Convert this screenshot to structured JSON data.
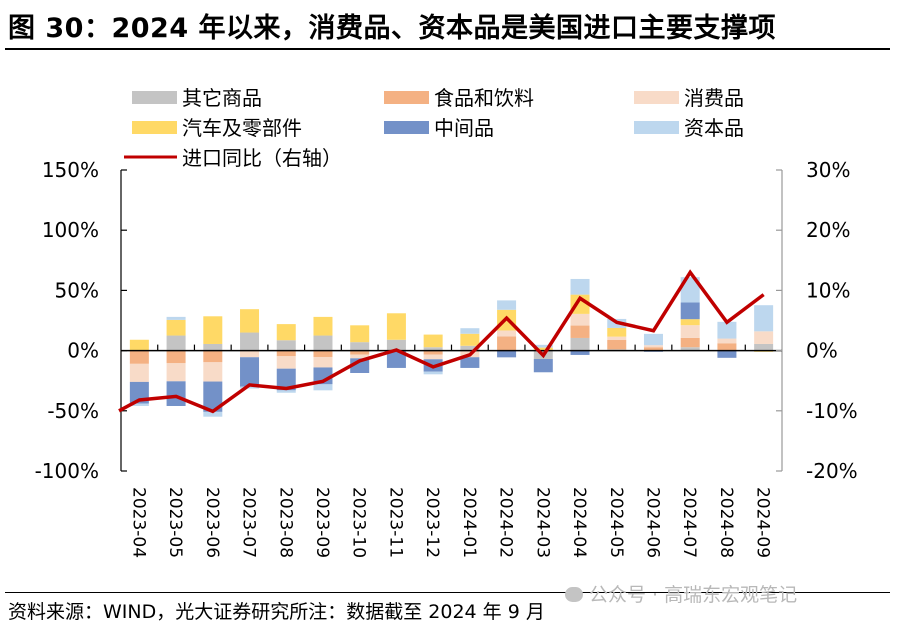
{
  "title": "图 30：2024 年以来，消费品、资本品是美国进口主要支撑项",
  "footer": "资料来源：WIND，光大证券研究所注：数据截至 2024 年 9 月",
  "watermark": "公众号 · 高瑞东宏观笔记",
  "chart_data": {
    "type": "bar",
    "stacked": true,
    "title": "图 30：2024 年以来，消费品、资本品是美国进口主要支撑项",
    "xlabel": "",
    "ylabel": "",
    "ylim": [
      -100,
      150
    ],
    "y_ticks": [
      "150%",
      "100%",
      "50%",
      "0%",
      "-50%",
      "-100%"
    ],
    "y_tick_values": [
      150,
      100,
      50,
      0,
      -50,
      -100
    ],
    "y2lim": [
      -20,
      30
    ],
    "y2_ticks": [
      "30%",
      "20%",
      "10%",
      "0%",
      "-10%",
      "-20%"
    ],
    "y2_tick_values": [
      30,
      20,
      10,
      0,
      -10,
      -20
    ],
    "grid": false,
    "legend_position": "top",
    "categories": [
      "2023-04",
      "2023-05",
      "2023-06",
      "2023-07",
      "2023-08",
      "2023-09",
      "2023-10",
      "2023-11",
      "2023-12",
      "2024-01",
      "2024-02",
      "2024-03",
      "2024-04",
      "2024-05",
      "2024-06",
      "2024-07",
      "2024-08",
      "2024-09"
    ],
    "series": [
      {
        "name": "其它商品",
        "color": "#c4c4c4",
        "axis": "left",
        "type": "bar",
        "values": [
          0,
          12.5,
          5.5,
          15,
          8.6,
          12.5,
          7,
          9,
          2.8,
          4,
          0,
          -7,
          10.5,
          1,
          0,
          2.8,
          0,
          5.5
        ]
      },
      {
        "name": "食品和饮料",
        "color": "#f4b183",
        "axis": "left",
        "type": "bar",
        "values": [
          -11,
          -10.5,
          -9.7,
          0,
          -4.7,
          -5.3,
          -3.3,
          0,
          -3.3,
          0,
          11.7,
          0,
          10.3,
          7.8,
          2.8,
          7.8,
          6.1,
          0
        ]
      },
      {
        "name": "消费品",
        "color": "#f8dbc8",
        "axis": "left",
        "type": "bar",
        "values": [
          -15,
          -15,
          -16,
          -5.5,
          -10.3,
          -8.7,
          -3.1,
          0,
          -3.9,
          -5.5,
          5,
          0,
          9.7,
          2.8,
          1.7,
          10.5,
          3.9,
          10.5
        ]
      },
      {
        "name": "汽车及零部件",
        "color": "#ffd966",
        "axis": "left",
        "type": "bar",
        "values": [
          9,
          13,
          23,
          19.4,
          13.4,
          15.5,
          14,
          22,
          10.5,
          10,
          17.2,
          2.5,
          16,
          7.2,
          0,
          5,
          0,
          -1
        ]
      },
      {
        "name": "中间品",
        "color": "#7391c8",
        "axis": "left",
        "type": "bar",
        "values": [
          -18,
          -20.5,
          -25.2,
          -24.5,
          -18,
          -14,
          -12.2,
          -14.4,
          -10.3,
          -8.9,
          -5.6,
          -11,
          -3.6,
          0,
          -1,
          13.9,
          -6,
          0
        ]
      },
      {
        "name": "资本品",
        "color": "#bdd7ee",
        "axis": "left",
        "type": "bar",
        "values": [
          -2,
          2.5,
          -4,
          -1.5,
          -2,
          -5,
          0,
          0,
          -2.2,
          4.6,
          7.8,
          2.3,
          13,
          7.5,
          9.4,
          21,
          13.9,
          21.7
        ]
      },
      {
        "name": "进口同比（右轴）",
        "color": "#c00000",
        "axis": "right",
        "type": "line",
        "line_start_value": -10,
        "values": [
          -8.2,
          -7.6,
          -10.1,
          -5.7,
          -6.3,
          -5.1,
          -1.7,
          0.1,
          -2.7,
          -0.7,
          5.4,
          -0.8,
          8.7,
          4.7,
          3.3,
          13,
          4.7,
          9.3
        ]
      }
    ]
  }
}
